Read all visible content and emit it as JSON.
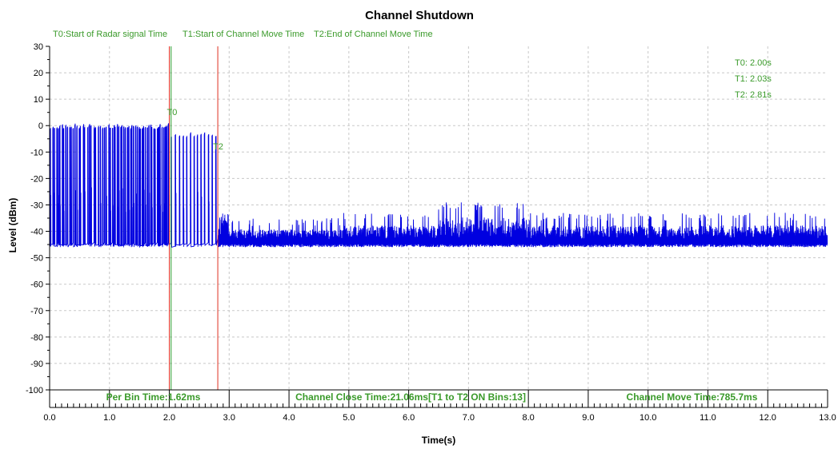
{
  "chart_data": {
    "type": "line",
    "title": "Channel Shutdown",
    "xlabel": "Time(s)",
    "ylabel": "Level (dBm)",
    "xlim": [
      0,
      13
    ],
    "ylim": [
      -100,
      30
    ],
    "x_ticks": [
      "0.0",
      "1.0",
      "2.0",
      "3.0",
      "4.0",
      "5.0",
      "6.0",
      "7.0",
      "8.0",
      "9.0",
      "10.0",
      "11.0",
      "12.0",
      "13.0"
    ],
    "y_ticks": [
      "30",
      "20",
      "10",
      "0",
      "-10",
      "-20",
      "-30",
      "-40",
      "-50",
      "-60",
      "-70",
      "-80",
      "-90",
      "-100"
    ],
    "grid": true,
    "header_notes": [
      "T0:Start of Radar signal Time",
      "T1:Start of Channel Move Time",
      "T2:End of Channel Move Time"
    ],
    "readouts": [
      "T0: 2.00s",
      "T1: 2.03s",
      "T2: 2.81s"
    ],
    "markers": [
      {
        "name": "T0",
        "label": "T0",
        "x": 2.0,
        "color": "#e03020"
      },
      {
        "name": "T1",
        "label": "",
        "x": 2.03,
        "color": "#2a9a2a"
      },
      {
        "name": "T2",
        "label": "T2",
        "x": 2.81,
        "color": "#e03020"
      }
    ],
    "footer_stats": [
      {
        "label": "Per Bin Time:1.62ms",
        "x": 2.0
      },
      {
        "label": "Channel Close Time:21.06ms[T1 to T2 ON Bins:13]",
        "x": 6.3
      },
      {
        "label": "Channel Move Time:785.7ms",
        "x": 11.0
      }
    ],
    "series": [
      {
        "color": "#0000e0",
        "baseline": -45,
        "pulses": [
          {
            "t": [
              0.0,
              0.5
            ],
            "peak": 0,
            "count": 16,
            "low": -45
          },
          {
            "t": [
              0.5,
              1.0
            ],
            "peak": 0,
            "count": 14,
            "low": -45
          },
          {
            "t": [
              1.0,
              1.5
            ],
            "peak": 0,
            "count": 18,
            "low": -45
          },
          {
            "t": [
              1.5,
              2.0
            ],
            "peak": 0,
            "count": 18,
            "low": -45
          },
          {
            "t": [
              2.0,
              2.8
            ],
            "peak": -3,
            "count": 13,
            "low": -45
          }
        ],
        "noise_segments": [
          {
            "t": [
              2.82,
              3.0
            ],
            "max": -30,
            "min": -46
          },
          {
            "t": [
              3.0,
              4.9
            ],
            "max": -38,
            "min": -46
          },
          {
            "t": [
              4.9,
              6.5
            ],
            "max": -36,
            "min": -46
          },
          {
            "t": [
              6.5,
              8.0
            ],
            "max": -32,
            "min": -46
          },
          {
            "t": [
              8.0,
              13.0
            ],
            "max": -36,
            "min": -46
          }
        ]
      }
    ]
  }
}
